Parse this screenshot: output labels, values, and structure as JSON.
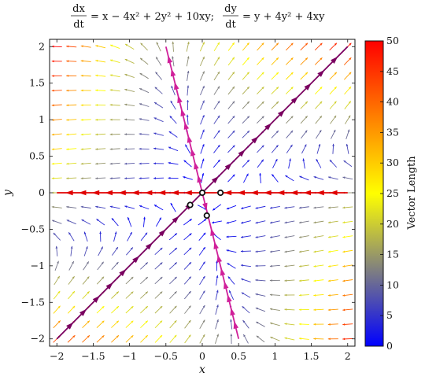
{
  "chart_data": {
    "type": "vector-field",
    "title": "dx/dt = x − 4x² + 2y² + 10xy; dy/dt = y + 4y² + 4xy",
    "title_parts": {
      "lhs1": "dx",
      "den1": "dt",
      "rhs1": "= x − 4x² + 2y² + 10xy;",
      "lhs2": "dy",
      "den2": "dt",
      "rhs2": "= y + 4y² + 4xy"
    },
    "xlabel": "x",
    "ylabel": "y",
    "xlim": [
      -2.1,
      2.1
    ],
    "ylim": [
      -2.1,
      2.1
    ],
    "xticks": [
      -2,
      -1.5,
      -1,
      -0.5,
      0,
      0.5,
      1,
      1.5,
      2
    ],
    "yticks": [
      -2,
      -1.5,
      -1,
      -0.5,
      0,
      0.5,
      1,
      1.5,
      2
    ],
    "xtick_labels": [
      "−2",
      "−1.5",
      "−1",
      "−0.5",
      "0",
      "0.5",
      "1",
      "1.5",
      "2"
    ],
    "ytick_labels": [
      "−2",
      "−1.5",
      "−1",
      "−0.5",
      "0",
      "0.5",
      "1",
      "1.5",
      "2"
    ],
    "colorbar": {
      "label": "Vector Length",
      "range": [
        0,
        50
      ],
      "ticks": [
        0,
        5,
        10,
        15,
        20,
        25,
        30,
        35,
        40,
        45,
        50
      ],
      "colormap": [
        "#0000ff",
        "#ffff00",
        "#ff0000"
      ]
    },
    "grid_step": 0.2,
    "equilibria": [
      {
        "x": 0,
        "y": 0
      },
      {
        "x": 0.25,
        "y": 0
      },
      {
        "x": -0.1667,
        "y": -0.1667
      },
      {
        "x": 0.0625,
        "y": -0.3125
      }
    ],
    "invariant_lines": [
      {
        "name": "y = 0",
        "color": "#e00000",
        "from": [
          -2,
          0
        ],
        "to": [
          2,
          0
        ]
      },
      {
        "name": "y = x",
        "color": "#7a0060",
        "from": [
          -2,
          -2
        ],
        "to": [
          2,
          2
        ]
      },
      {
        "name": "x = -y/4",
        "color": "#d0209a",
        "from": [
          -0.5,
          2
        ],
        "to": [
          0.5,
          -2
        ]
      }
    ]
  }
}
